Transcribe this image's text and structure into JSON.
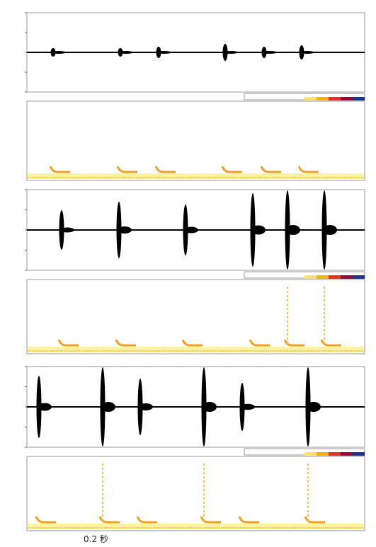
{
  "scale_label": "0.2 秒"
}
